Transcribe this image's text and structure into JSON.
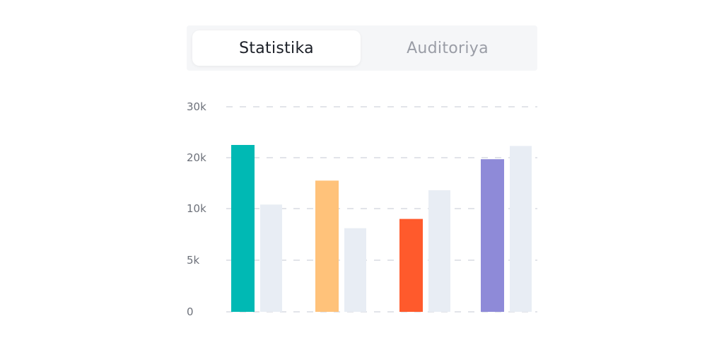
{
  "tabs": [
    {
      "label": "Statistika",
      "active": true
    },
    {
      "label": "Auditoriya",
      "active": false
    }
  ],
  "chart_data": {
    "type": "bar",
    "categories": [
      "",
      "",
      "",
      ""
    ],
    "series": [
      {
        "values": [
          22500,
          15500,
          9000,
          19700
        ],
        "colors": [
          "#00b9b4",
          "#ffc27a",
          "#ff5a2c",
          "#8e8ad8"
        ]
      },
      {
        "values": [
          10800,
          8100,
          13600,
          22300
        ],
        "colors": [
          "#e8edf4",
          "#e8edf4",
          "#e8edf4",
          "#e8edf4"
        ]
      }
    ],
    "yticks": [
      {
        "value": 0,
        "label": "0"
      },
      {
        "value": 5000,
        "label": "5k"
      },
      {
        "value": 10000,
        "label": "10k"
      },
      {
        "value": 20000,
        "label": "20k"
      },
      {
        "value": 30000,
        "label": "30k"
      }
    ],
    "grid": true,
    "grid_color": "#d9dce2"
  }
}
